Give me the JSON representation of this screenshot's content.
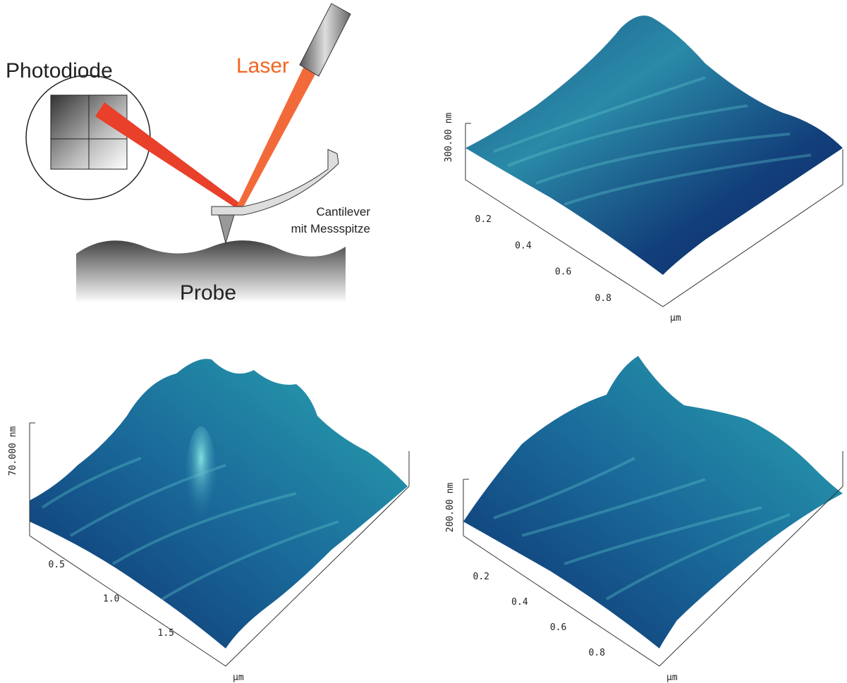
{
  "schematic": {
    "photodiode": "Photodiode",
    "laser": "Laser",
    "cantilever": [
      "Cantilever",
      "mit Messspitze"
    ],
    "probe": "Probe"
  },
  "plots": [
    {
      "z_label": "300.00 nm",
      "ticks": [
        "0.2",
        "0.4",
        "0.6",
        "0.8"
      ],
      "unit": "µm"
    },
    {
      "z_label": "70.000 nm",
      "ticks": [
        "0.5",
        "1.0",
        "1.5"
      ],
      "unit": "µm"
    },
    {
      "z_label": "200.00 nm",
      "ticks": [
        "0.2",
        "0.4",
        "0.6",
        "0.8"
      ],
      "unit": "µm"
    }
  ]
}
